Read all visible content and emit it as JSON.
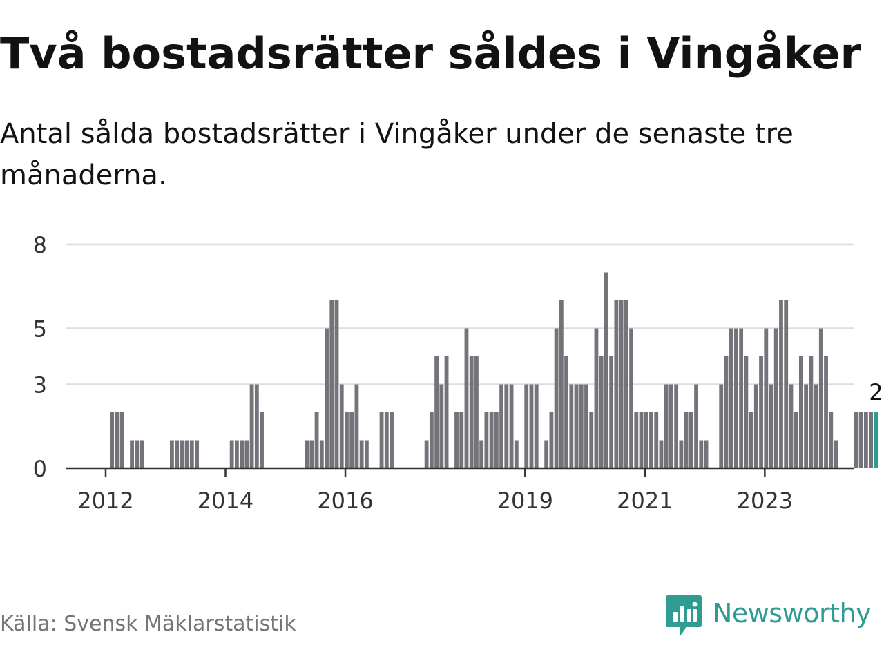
{
  "title": "Två bostadsrätter såldes i Vingåker",
  "subtitle": "Antal sålda bostadsrätter i Vingåker under de senaste tre månaderna.",
  "source": "Källa: Svensk Mäklarstatistik",
  "brand": {
    "name": "Newsworthy",
    "icon": "newsworthy-logo-icon",
    "color": "#2f9c93"
  },
  "colors": {
    "bar": "#74737a",
    "highlight": "#2a9d94",
    "grid": "#dddddd",
    "axis": "#333333"
  },
  "chart_data": {
    "type": "bar",
    "title": "Två bostadsrätter såldes i Vingåker",
    "subtitle": "Antal sålda bostadsrätter i Vingåker under de senaste tre månaderna.",
    "xlabel": "",
    "ylabel": "",
    "ylim": [
      0,
      8
    ],
    "yticks": [
      "0",
      "3",
      "5",
      "8"
    ],
    "xticks": [
      {
        "label": "2012",
        "at": "2012-01"
      },
      {
        "label": "2014",
        "at": "2014-01"
      },
      {
        "label": "2016",
        "at": "2016-01"
      },
      {
        "label": "2019",
        "at": "2019-01"
      },
      {
        "label": "2021",
        "at": "2021-01"
      },
      {
        "label": "2023",
        "at": "2023-01"
      }
    ],
    "grid": true,
    "legend": "none",
    "highlight_label": "2",
    "start_month": "2011-01",
    "values": [
      0,
      0,
      0,
      0,
      0,
      0,
      0,
      0,
      0,
      0,
      0,
      0,
      0,
      2,
      2,
      2,
      0,
      1,
      1,
      1,
      0,
      0,
      0,
      0,
      0,
      1,
      1,
      1,
      1,
      1,
      1,
      0,
      0,
      0,
      0,
      0,
      0,
      1,
      1,
      1,
      1,
      3,
      3,
      2,
      0,
      0,
      0,
      0,
      0,
      0,
      0,
      0,
      1,
      1,
      2,
      1,
      5,
      6,
      6,
      3,
      2,
      2,
      3,
      1,
      1,
      0,
      0,
      2,
      2,
      2,
      0,
      0,
      0,
      0,
      0,
      0,
      1,
      2,
      4,
      3,
      4,
      0,
      2,
      2,
      5,
      4,
      4,
      1,
      2,
      2,
      2,
      3,
      3,
      3,
      1,
      0,
      3,
      3,
      3,
      0,
      1,
      2,
      5,
      6,
      4,
      3,
      3,
      3,
      3,
      2,
      5,
      4,
      7,
      4,
      6,
      6,
      6,
      5,
      2,
      2,
      2,
      2,
      2,
      1,
      3,
      3,
      3,
      1,
      2,
      2,
      3,
      1,
      1,
      0,
      0,
      3,
      4,
      5,
      5,
      5,
      4,
      2,
      3,
      4,
      5,
      3,
      5,
      6,
      6,
      3,
      2,
      4,
      3,
      4,
      3,
      5,
      4,
      2,
      1,
      0,
      0,
      0,
      2,
      2,
      2,
      2,
      2
    ]
  }
}
